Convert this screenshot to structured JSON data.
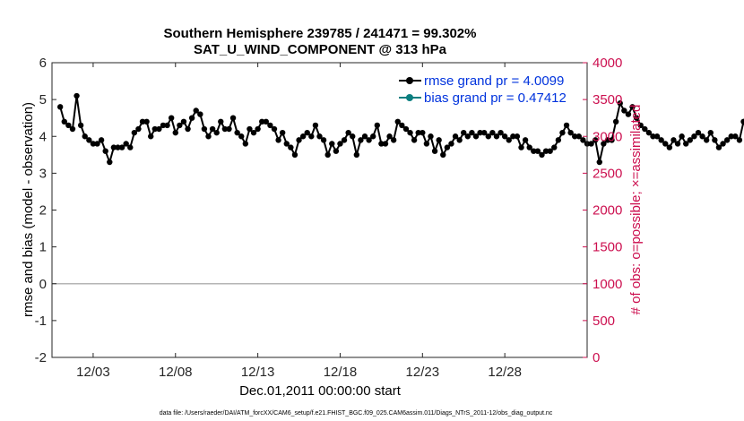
{
  "colors": {
    "rmse": "#000000",
    "bias": "#0b7f80",
    "obs": "#cc0f4f",
    "legend_text": "#0033dd",
    "zero": "#b5b5b5",
    "axis": "#262626"
  },
  "chart_data": {
    "type": "line",
    "title_line1": "Southern Hemisphere 239785 / 241471 = 99.302%",
    "title_line2": "SAT_U_WIND_COMPONENT @ 313 hPa",
    "xlabel": "Dec.01,2011 00:00:00 start",
    "ylabel_left": "rmse and bias (model - observation)",
    "ylabel_right": "# of obs: o=possible; ×=assimilated",
    "xlim": [
      0,
      32.5
    ],
    "ylim_left": [
      -2,
      6
    ],
    "ylim_right": [
      0,
      4000
    ],
    "x_ticks": [
      2.5,
      7.5,
      12.5,
      17.5,
      22.5,
      27.5
    ],
    "x_tick_labels": [
      "12/03",
      "12/08",
      "12/13",
      "12/18",
      "12/23",
      "12/28"
    ],
    "y_left_ticks": [
      -2,
      -1,
      0,
      1,
      2,
      3,
      4,
      5,
      6
    ],
    "y_left_tick_labels": [
      "-2",
      "-1",
      "0",
      "1",
      "2",
      "3",
      "4",
      "5",
      "6"
    ],
    "y_right_ticks": [
      0,
      500,
      1000,
      1500,
      2000,
      2500,
      3000,
      3500,
      4000
    ],
    "y_right_tick_labels": [
      "0",
      "500",
      "1000",
      "1500",
      "2000",
      "2500",
      "3000",
      "3500",
      "4000"
    ],
    "legend": {
      "placement": "top-right",
      "entries": [
        "rmse grand pr = 4.0099",
        "bias grand pr = 0.47412"
      ]
    },
    "footnote": "data file: /Users/raeder/DAI/ATM_forcXX/CAM6_setup/f.e21.FHIST_BGC.f09_025.CAM6assim.011/Diags_NTrS_2011-12/obs_diag_output.nc",
    "x_step_days": 0.25,
    "series": [
      {
        "name": "rmse",
        "values": [
          4.8,
          4.4,
          4.3,
          4.2,
          5.1,
          4.3,
          4.0,
          3.9,
          3.8,
          3.8,
          3.9,
          3.6,
          3.3,
          3.7,
          3.7,
          3.7,
          3.8,
          3.7,
          4.1,
          4.2,
          4.4,
          4.4,
          4.0,
          4.2,
          4.2,
          4.3,
          4.3,
          4.5,
          4.1,
          4.3,
          4.4,
          4.2,
          4.5,
          4.7,
          4.6,
          4.2,
          4.0,
          4.2,
          4.1,
          4.4,
          4.2,
          4.2,
          4.5,
          4.1,
          4.0,
          3.8,
          4.2,
          4.1,
          4.2,
          4.4,
          4.4,
          4.3,
          4.2,
          3.9,
          4.1,
          3.8,
          3.7,
          3.5,
          3.9,
          4.0,
          4.1,
          4.0,
          4.3,
          4.0,
          3.9,
          3.5,
          3.8,
          3.6,
          3.8,
          3.9,
          4.1,
          4.0,
          3.5,
          3.9,
          4.0,
          3.9,
          4.0,
          4.3,
          3.8,
          3.8,
          4.0,
          3.9,
          4.4,
          4.3,
          4.2,
          4.1,
          3.9,
          4.1,
          4.1,
          3.8,
          4.0,
          3.6,
          3.9,
          3.5,
          3.7,
          3.8,
          4.0,
          3.9,
          4.1,
          4.0,
          4.1,
          4.0,
          4.1,
          4.1,
          4.0,
          4.1,
          4.0,
          4.1,
          4.0,
          3.9,
          4.0,
          4.0,
          3.7,
          3.9,
          3.7,
          3.6,
          3.6,
          3.5,
          3.6,
          3.6,
          3.7,
          3.9,
          4.1,
          4.3,
          4.1,
          4.0,
          4.0,
          3.9,
          3.8,
          3.8,
          3.9,
          3.3,
          3.8,
          3.9,
          3.9,
          4.4,
          4.9,
          4.7,
          4.6,
          4.8,
          4.5,
          4.3,
          4.2,
          4.1,
          4.0,
          4.0,
          3.9,
          3.8,
          3.7,
          3.9,
          3.8,
          4.0,
          3.8,
          3.9,
          4.0,
          4.1,
          4.0,
          3.9,
          4.1,
          3.9,
          3.7,
          3.8,
          3.9,
          4.0,
          4.0,
          3.9,
          4.4,
          4.1,
          4.2,
          4.1,
          4.0,
          3.8,
          3.9,
          4.0,
          3.9,
          3.9,
          3.8,
          3.8,
          3.5,
          3.9,
          4.0,
          3.9,
          4.0,
          4.1,
          4.0,
          3.9,
          3.8,
          3.7,
          4.0,
          3.9,
          3.8,
          3.9,
          4.0,
          3.8,
          3.9,
          3.8,
          3.7,
          3.6,
          3.6,
          3.5,
          3.7,
          3.8,
          3.7,
          3.5,
          3.8,
          3.9,
          4.0,
          4.2,
          4.3,
          4.3,
          4.5,
          4.3,
          4.1,
          3.9,
          3.8,
          4.0,
          4.1,
          4.0,
          3.8,
          3.9,
          4.0,
          3.9,
          3.8,
          3.7,
          3.9,
          3.9,
          3.8,
          3.8,
          4.0,
          3.9,
          3.8,
          3.9,
          4.0,
          3.9,
          4.0,
          4.0,
          3.9,
          3.9,
          4.0,
          4.0,
          3.9,
          3.8,
          4.0,
          4.0,
          4.0,
          3.9,
          3.8,
          4.0,
          3.9,
          3.8,
          3.6,
          3.5,
          3.8,
          3.9,
          4.0,
          3.9,
          3.9
        ],
        "display_values": [
          4.8,
          4.4,
          4.3,
          4.2,
          5.1,
          4.3,
          4.0,
          3.9,
          3.8,
          3.8,
          3.9,
          3.6,
          3.3,
          3.7,
          3.7,
          3.7,
          3.8,
          3.7,
          4.1,
          4.2,
          4.4,
          4.4,
          4.0,
          4.2,
          4.2,
          4.3,
          4.3,
          4.5,
          4.1,
          4.3,
          4.4,
          4.2,
          4.5,
          4.7,
          4.6,
          4.2,
          4.0,
          4.2,
          4.1,
          4.4,
          4.2,
          4.2,
          4.5,
          4.1,
          4.0,
          3.8,
          4.2,
          4.1,
          4.2,
          4.4,
          4.4,
          4.3,
          4.2,
          3.9,
          4.1,
          3.8,
          3.7,
          3.5,
          3.9,
          4.0,
          4.1,
          4.0,
          4.3,
          4.0,
          3.9,
          3.5,
          3.8,
          3.6,
          3.8,
          3.9,
          4.1,
          4.0,
          3.5,
          3.9,
          4.0,
          3.9,
          4.0,
          4.3,
          3.8,
          3.8,
          4.0,
          3.9,
          4.4,
          4.3,
          4.2,
          4.1,
          3.9,
          4.1,
          4.1,
          3.8,
          4.0,
          3.6,
          3.9,
          3.5,
          3.7,
          3.8,
          4.0,
          3.9,
          4.1,
          4.0,
          4.1,
          4.0,
          4.1,
          4.1,
          4.0,
          4.1,
          4.0,
          4.1,
          4.0,
          3.9,
          4.0,
          4.0,
          3.7,
          3.9,
          3.7,
          3.6,
          3.6,
          3.5,
          3.6,
          3.6,
          3.7,
          3.9,
          4.1,
          4.3,
          4.1,
          4.0,
          4.0,
          3.9,
          3.8,
          3.8,
          3.9,
          3.3
        ]
      }
    ]
  }
}
